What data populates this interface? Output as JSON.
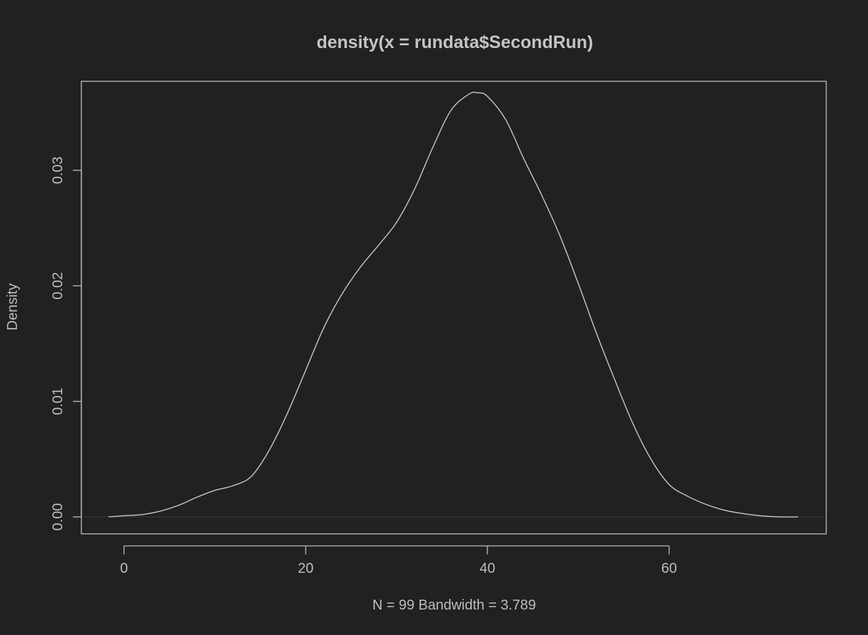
{
  "chart_data": {
    "type": "line",
    "title": "density(x = rundata$SecondRun)",
    "xlabel": "N = 99   Bandwidth = 3.789",
    "ylabel": "Density",
    "xlim": [
      -4.7,
      77.3
    ],
    "ylim": [
      -0.00147,
      0.0377
    ],
    "x_ticks": [
      0,
      20,
      40,
      60
    ],
    "y_ticks": [
      0.0,
      0.01,
      0.02,
      0.03
    ],
    "x_tick_labels": [
      "0",
      "20",
      "40",
      "60"
    ],
    "y_tick_labels": [
      "0.00",
      "0.01",
      "0.02",
      "0.03"
    ],
    "grid": false,
    "legend": "none",
    "baseline_y": 0,
    "series": [
      {
        "x": [
          -1.7,
          0,
          2,
          4,
          6,
          8,
          10,
          12,
          14,
          16,
          18,
          20,
          22,
          24,
          26,
          28,
          30,
          32,
          34,
          36,
          38,
          39,
          40,
          42,
          44,
          46,
          48,
          50,
          52,
          54,
          56,
          58,
          60,
          62,
          64,
          66,
          68,
          70,
          72,
          74.2
        ],
        "y": [
          0.0,
          0.0001,
          0.0002,
          0.0005,
          0.001,
          0.0017,
          0.0023,
          0.0027,
          0.0035,
          0.0058,
          0.009,
          0.0127,
          0.0164,
          0.0193,
          0.0216,
          0.0235,
          0.0255,
          0.0284,
          0.032,
          0.0352,
          0.0366,
          0.0367,
          0.0364,
          0.0344,
          0.031,
          0.0278,
          0.0243,
          0.0202,
          0.0159,
          0.0119,
          0.0081,
          0.005,
          0.0028,
          0.0018,
          0.0011,
          0.0006,
          0.0003,
          0.0001,
          0.0,
          0.0
        ]
      }
    ]
  }
}
